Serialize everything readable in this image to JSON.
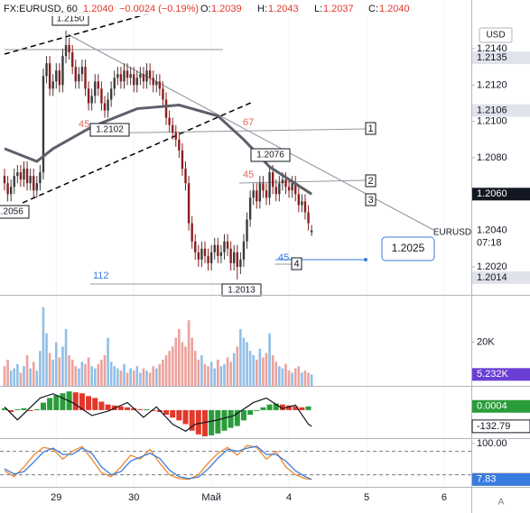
{
  "header": {
    "symbol": "FX:EURUSD, 60",
    "price": "1.2040",
    "change": "−0.0024 (−0.19%)",
    "ohlc": [
      [
        "O:",
        "1.2039"
      ],
      [
        "H:",
        "1.2043"
      ],
      [
        "L:",
        "1.2037"
      ],
      [
        "C:",
        "1.2040"
      ]
    ]
  },
  "auto_button": "A",
  "chart_data": [
    {
      "type": "candlestick",
      "xlim": [
        -1.4,
        144.4
      ],
      "ylim": [
        1.20046,
        1.21668
      ],
      "yticks": [
        {
          "value": 1.202,
          "label": "1.2020"
        },
        {
          "value": 1.204,
          "label": "1.2040"
        },
        {
          "value": 1.206,
          "label": "1.2060"
        },
        {
          "value": 1.208,
          "label": "1.2080"
        },
        {
          "value": 1.21,
          "label": "1.2100"
        },
        {
          "value": 1.212,
          "label": "1.2120"
        },
        {
          "value": 1.214,
          "label": "1.2140"
        }
      ],
      "currency": "USD",
      "up_color": "#3b3b3b",
      "down_color": "#8b1e1e",
      "open": [
        1.207,
        1.2066,
        1.206,
        1.2064,
        1.207,
        1.2072,
        1.2068,
        1.2074,
        1.2066,
        1.207,
        1.2062,
        1.2066,
        1.2072,
        1.2125,
        1.2132,
        1.2118,
        1.2122,
        1.2128,
        1.212,
        1.2136,
        1.2142,
        1.2138,
        1.213,
        1.2122,
        1.2126,
        1.213,
        1.2118,
        1.211,
        1.2114,
        1.2122,
        1.2118,
        1.211,
        1.2106,
        1.2112,
        1.2118,
        1.2124,
        1.2126,
        1.2122,
        1.2128,
        1.2124,
        1.2126,
        1.212,
        1.2124,
        1.2126,
        1.2122,
        1.2128,
        1.2124,
        1.212,
        1.2122,
        1.2118,
        1.2112,
        1.2102,
        1.2098,
        1.2094,
        1.209,
        1.2084,
        1.2074,
        1.2066,
        1.2044,
        1.2034,
        1.2028,
        1.2024,
        1.203,
        1.2026,
        1.2022,
        1.2028,
        1.2032,
        1.2026,
        1.2028,
        1.2034,
        1.203,
        1.2022,
        1.2028,
        1.202,
        1.2024,
        1.2034,
        1.2046,
        1.2058,
        1.2062,
        1.2056,
        1.2066,
        1.2062,
        1.2058,
        1.2072,
        1.2064,
        1.206,
        1.2066,
        1.2068,
        1.2064,
        1.2062,
        1.2066,
        1.206,
        1.2054,
        1.2056,
        1.205,
        1.2039
      ],
      "high": [
        1.2074,
        1.207,
        1.2068,
        1.2074,
        1.2076,
        1.2076,
        1.2078,
        1.2078,
        1.2074,
        1.2074,
        1.207,
        1.2076,
        1.2129,
        1.2136,
        1.2136,
        1.2126,
        1.2132,
        1.2132,
        1.214,
        1.215,
        1.2146,
        1.2142,
        1.2134,
        1.213,
        1.2134,
        1.2134,
        1.2122,
        1.2118,
        1.2126,
        1.2126,
        1.2122,
        1.2114,
        1.2116,
        1.2122,
        1.2128,
        1.213,
        1.213,
        1.2132,
        1.2132,
        1.213,
        1.213,
        1.2128,
        1.213,
        1.213,
        1.2132,
        1.2132,
        1.2128,
        1.2126,
        1.2126,
        1.2122,
        1.2116,
        1.2106,
        1.2102,
        1.2098,
        1.2094,
        1.2088,
        1.2078,
        1.207,
        1.2048,
        1.2038,
        1.2032,
        1.2034,
        1.2034,
        1.203,
        1.2032,
        1.2036,
        1.2036,
        1.2032,
        1.2038,
        1.2038,
        1.2034,
        1.2032,
        1.2032,
        1.2028,
        1.2038,
        1.205,
        1.2062,
        1.2066,
        1.2066,
        1.207,
        1.207,
        1.2066,
        1.2076,
        1.2076,
        1.2068,
        1.207,
        1.2072,
        1.2072,
        1.2068,
        1.207,
        1.207,
        1.2064,
        1.206,
        1.206,
        1.2054,
        1.2043
      ],
      "low": [
        1.2062,
        1.2056,
        1.2056,
        1.206,
        1.2066,
        1.2064,
        1.2064,
        1.2062,
        1.2062,
        1.2058,
        1.2058,
        1.2062,
        1.2068,
        1.2121,
        1.2114,
        1.2114,
        1.2118,
        1.2116,
        1.2116,
        1.2132,
        1.2134,
        1.2126,
        1.2118,
        1.2118,
        1.2122,
        1.2114,
        1.2106,
        1.2106,
        1.211,
        1.2114,
        1.2106,
        1.2102,
        1.2102,
        1.2108,
        1.2114,
        1.212,
        1.2118,
        1.2118,
        1.212,
        1.212,
        1.2116,
        1.2116,
        1.212,
        1.2118,
        1.2118,
        1.212,
        1.2116,
        1.2116,
        1.2114,
        1.2108,
        1.2098,
        1.2094,
        1.209,
        1.2086,
        1.208,
        1.207,
        1.2062,
        1.204,
        1.203,
        1.2024,
        1.202,
        1.202,
        1.2022,
        1.2018,
        1.2018,
        1.2024,
        1.2022,
        1.2022,
        1.2024,
        1.2026,
        1.2018,
        1.2018,
        1.2013,
        1.2016,
        1.202,
        1.203,
        1.2042,
        1.2054,
        1.2052,
        1.2052,
        1.2058,
        1.2054,
        1.2054,
        1.206,
        1.2056,
        1.2056,
        1.2062,
        1.206,
        1.2058,
        1.2058,
        1.2056,
        1.205,
        1.205,
        1.2046,
        1.204,
        1.2037
      ],
      "close": [
        1.2066,
        1.206,
        1.2064,
        1.207,
        1.2072,
        1.2068,
        1.2074,
        1.2066,
        1.207,
        1.2062,
        1.2066,
        1.2072,
        1.2125,
        1.2132,
        1.2118,
        1.2122,
        1.2128,
        1.212,
        1.2136,
        1.2142,
        1.2138,
        1.213,
        1.2122,
        1.2126,
        1.213,
        1.2118,
        1.211,
        1.2114,
        1.2122,
        1.2118,
        1.211,
        1.2106,
        1.2112,
        1.2118,
        1.2124,
        1.2126,
        1.2122,
        1.2128,
        1.2124,
        1.2126,
        1.212,
        1.2124,
        1.2126,
        1.2122,
        1.2128,
        1.2124,
        1.212,
        1.2122,
        1.2118,
        1.2112,
        1.2102,
        1.2098,
        1.2094,
        1.209,
        1.2084,
        1.2074,
        1.2066,
        1.2044,
        1.2034,
        1.2028,
        1.2024,
        1.203,
        1.2026,
        1.2022,
        1.2028,
        1.2032,
        1.2026,
        1.2028,
        1.2034,
        1.203,
        1.2022,
        1.2028,
        1.202,
        1.2024,
        1.2034,
        1.2046,
        1.2058,
        1.2062,
        1.2056,
        1.2066,
        1.2062,
        1.2058,
        1.2072,
        1.2064,
        1.206,
        1.2066,
        1.2068,
        1.2064,
        1.2062,
        1.2066,
        1.206,
        1.2054,
        1.2056,
        1.205,
        1.2044,
        1.204
      ],
      "moving_average": {
        "color": "#5d606b",
        "x": [
          0,
          10,
          15,
          27,
          41,
          54,
          66,
          74,
          82,
          95
        ],
        "values": [
          1.2085,
          1.2078,
          1.2085,
          1.2097,
          1.2107,
          1.2109,
          1.2103,
          1.209,
          1.2075,
          1.206
        ]
      },
      "marker_labels": [
        {
          "value": 1.2135,
          "label": "1.2135",
          "color": "#e0e3eb",
          "text_color": "#131722"
        },
        {
          "value": 1.2106,
          "label": "1.2106",
          "color": "#e0e3eb",
          "text_color": "#131722"
        },
        {
          "value": 1.206,
          "label": "1.2060",
          "color": "#131722",
          "text_color": "#ffffff"
        },
        {
          "value": 1.2014,
          "label": "1.2014",
          "color": "#e0e3eb",
          "text_color": "#131722"
        }
      ],
      "last_price": {
        "value": 1.204,
        "label": "1.2040"
      },
      "countdown": "07:18",
      "symbol_label": "EURUSD",
      "annotations": {
        "levels": [
          "45",
          "67",
          "45",
          "45",
          "112"
        ],
        "prices": [
          "1.2150",
          "1.2102",
          "1.2076",
          "1.2056",
          "1.2013"
        ],
        "markers": [
          "1",
          "2",
          "3",
          "4"
        ],
        "target": "1.2025"
      }
    },
    {
      "type": "bar",
      "xlim": [
        -1.4,
        144.4
      ],
      "ylim": [
        0,
        40400
      ],
      "yticks": [
        {
          "value": 20000,
          "label": "20K"
        }
      ],
      "up_color": "#90bfe8",
      "down_color": "#eba29c",
      "values": [
        9000,
        12000,
        7000,
        8000,
        10000,
        6000,
        9000,
        14000,
        8000,
        11000,
        7000,
        16000,
        36000,
        24000,
        15000,
        12000,
        20000,
        13000,
        18000,
        26000,
        14000,
        12000,
        9000,
        8000,
        11000,
        10000,
        13000,
        9000,
        8000,
        10000,
        12000,
        14000,
        22000,
        11000,
        9000,
        8000,
        7000,
        10000,
        6000,
        8000,
        7000,
        9000,
        6000,
        8000,
        7000,
        6000,
        9000,
        8000,
        10000,
        12000,
        14000,
        16000,
        18000,
        22000,
        26000,
        20000,
        18000,
        30000,
        22000,
        16000,
        12000,
        14000,
        10000,
        9000,
        11000,
        8000,
        12000,
        9000,
        10000,
        13000,
        11000,
        15000,
        18000,
        26000,
        22000,
        20000,
        16000,
        14000,
        12000,
        17000,
        13000,
        15000,
        24000,
        14000,
        11000,
        9000,
        8000,
        10000,
        7000,
        6000,
        8000,
        9000,
        6000,
        7000,
        6000,
        5232
      ],
      "current_label": "5.232K",
      "current_color": "#6a3fd4"
    },
    {
      "type": "combo",
      "xlim": [
        -1.4,
        144.4
      ],
      "ylim": [
        -0.003,
        0.0024
      ],
      "y2lim": [
        -250,
        250
      ],
      "up_color": "#2a9d3a",
      "down_color": "#e2382b",
      "x": [
        0,
        2,
        4,
        6,
        8,
        10,
        12,
        14,
        16,
        18,
        20,
        22,
        24,
        26,
        28,
        30,
        32,
        34,
        36,
        38,
        40,
        42,
        44,
        46,
        48,
        50,
        52,
        54,
        56,
        58,
        60,
        62,
        64,
        66,
        68,
        70,
        72,
        74,
        76,
        78,
        80,
        82,
        84,
        86,
        88,
        90,
        92,
        94
      ],
      "values": [
        0.0002,
        -0.0002,
        0.0001,
        0.0002,
        -0.0001,
        0.0001,
        0.0008,
        0.0013,
        0.0016,
        0.0018,
        0.002,
        0.0019,
        0.0018,
        0.0015,
        0.0013,
        0.0009,
        0.0006,
        0.0005,
        0.0004,
        0.0003,
        0.0002,
        0.0001,
        0.0001,
        -0.0001,
        -0.0002,
        -0.0005,
        -0.0008,
        -0.0011,
        -0.0015,
        -0.0022,
        -0.0026,
        -0.0028,
        -0.0027,
        -0.0025,
        -0.0022,
        -0.0019,
        -0.0017,
        -0.0011,
        -0.0005,
        -0.0001,
        0.0003,
        0.0006,
        0.0007,
        0.0006,
        0.0005,
        0.0004,
        0.0003,
        0.0004
      ],
      "line": {
        "color": "#131722",
        "axis": "y2",
        "x": [
          0,
          4,
          11,
          15,
          21,
          27,
          32,
          38,
          43,
          47,
          52,
          56,
          59,
          66,
          71,
          77,
          81,
          86,
          90,
          94,
          95
        ],
        "values": [
          60,
          -69,
          147,
          190,
          103,
          -26,
          17,
          103,
          -43,
          60,
          -112,
          -181,
          -112,
          -69,
          -26,
          103,
          147,
          43,
          78,
          -112,
          -132.79
        ]
      }
    },
    {
      "type": "line",
      "xlim": [
        -1.4,
        144.4
      ],
      "ylim": [
        -11,
        109
      ],
      "yticks": [
        {
          "value": 100,
          "label": "100.00"
        }
      ],
      "levels": [
        80,
        20
      ],
      "xticks": [
        {
          "value": 16,
          "label": "29"
        },
        {
          "value": 40,
          "label": "30"
        },
        {
          "value": 64,
          "label": "Май"
        },
        {
          "value": 88,
          "label": "4"
        },
        {
          "value": 112,
          "label": "5"
        },
        {
          "value": 136,
          "label": "6"
        }
      ],
      "x": [
        0,
        3,
        6,
        9,
        12,
        15,
        18,
        21,
        24,
        27,
        30,
        33,
        36,
        39,
        42,
        45,
        48,
        51,
        54,
        57,
        60,
        63,
        66,
        69,
        72,
        75,
        78,
        81,
        84,
        87,
        90,
        93,
        95
      ],
      "series": [
        {
          "color": "#f0892b",
          "values": [
            30,
            15,
            40,
            70,
            90,
            85,
            60,
            80,
            92,
            60,
            25,
            15,
            40,
            70,
            60,
            85,
            50,
            20,
            10,
            8,
            20,
            50,
            75,
            90,
            70,
            95,
            90,
            60,
            80,
            40,
            20,
            10,
            8.21
          ]
        },
        {
          "color": "#3a7be0",
          "values": [
            35,
            22,
            28,
            52,
            78,
            88,
            72,
            72,
            88,
            75,
            40,
            20,
            28,
            55,
            65,
            75,
            62,
            32,
            15,
            10,
            14,
            35,
            62,
            85,
            80,
            88,
            93,
            72,
            72,
            55,
            30,
            15,
            7.83
          ]
        }
      ]
    }
  ]
}
